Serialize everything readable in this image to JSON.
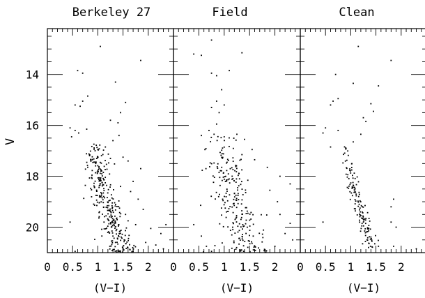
{
  "chart_data": [
    {
      "type": "scatter",
      "title": "Berkeley 27",
      "xlabel": "(V−I)",
      "ylabel": "V",
      "xlim": [
        0,
        2.5
      ],
      "ylim": [
        21,
        12.2
      ],
      "y_inverted": true,
      "xticks": [
        "0",
        "0.5",
        "1",
        "1.5",
        "2"
      ],
      "yticks": [
        "14",
        "16",
        "18",
        "20"
      ],
      "grid": false,
      "points": [
        [
          1.05,
          12.9
        ],
        [
          0.6,
          13.85
        ],
        [
          0.7,
          13.95
        ],
        [
          1.85,
          13.45
        ],
        [
          1.35,
          14.3
        ],
        [
          0.8,
          14.85
        ],
        [
          0.7,
          15.05
        ],
        [
          0.55,
          15.2
        ],
        [
          0.65,
          15.25
        ],
        [
          1.55,
          15.1
        ],
        [
          1.45,
          15.5
        ],
        [
          1.25,
          15.8
        ],
        [
          1.4,
          15.9
        ],
        [
          0.45,
          16.1
        ],
        [
          0.55,
          16.2
        ],
        [
          0.62,
          16.3
        ],
        [
          0.48,
          16.45
        ],
        [
          0.78,
          16.15
        ],
        [
          1.42,
          16.4
        ],
        [
          1.3,
          16.6
        ],
        [
          1.0,
          16.95
        ],
        [
          1.15,
          16.85
        ],
        [
          0.95,
          17.45
        ],
        [
          1.25,
          17.3
        ],
        [
          1.5,
          17.25
        ],
        [
          1.6,
          17.4
        ],
        [
          1.85,
          17.7
        ],
        [
          1.7,
          18.2
        ],
        [
          1.45,
          18.4
        ],
        [
          1.65,
          18.6
        ],
        [
          1.8,
          18.9
        ],
        [
          1.9,
          19.3
        ],
        [
          1.55,
          19.5
        ],
        [
          1.6,
          19.75
        ],
        [
          1.75,
          19.9
        ],
        [
          2.05,
          20.05
        ],
        [
          2.25,
          20.25
        ],
        [
          2.35,
          19.9
        ],
        [
          1.95,
          20.6
        ],
        [
          2.15,
          20.7
        ],
        [
          2.3,
          20.85
        ],
        [
          0.45,
          19.8
        ],
        [
          0.55,
          20.95
        ],
        [
          1.3,
          20.35
        ],
        [
          1.35,
          20.6
        ],
        [
          1.5,
          20.9
        ],
        [
          1.7,
          20.95
        ]
      ],
      "main_sequence": {
        "ridge": [
          [
            0.95,
            16.7
          ],
          [
            1.0,
            17.5
          ],
          [
            1.05,
            18.3
          ],
          [
            1.1,
            18.8
          ],
          [
            1.2,
            19.2
          ],
          [
            1.3,
            19.8
          ],
          [
            1.4,
            20.4
          ],
          [
            1.55,
            21.0
          ]
        ],
        "count": 310,
        "spread": 0.09
      }
    },
    {
      "type": "scatter",
      "title": "Field",
      "xlabel": "(V−I)",
      "ylabel": "",
      "xlim": [
        0,
        2.5
      ],
      "ylim": [
        21,
        12.2
      ],
      "y_inverted": true,
      "xticks": [
        "0",
        "0.5",
        "1",
        "1.5",
        "2"
      ],
      "grid": false,
      "points": [
        [
          0.75,
          12.65
        ],
        [
          1.35,
          13.15
        ],
        [
          0.4,
          13.2
        ],
        [
          0.55,
          13.25
        ],
        [
          0.75,
          13.95
        ],
        [
          0.85,
          14.05
        ],
        [
          1.1,
          13.85
        ],
        [
          0.95,
          14.6
        ],
        [
          0.85,
          15.05
        ],
        [
          1.0,
          15.2
        ],
        [
          0.75,
          15.3
        ],
        [
          0.9,
          15.5
        ],
        [
          0.85,
          15.95
        ],
        [
          0.7,
          16.2
        ],
        [
          0.8,
          16.35
        ],
        [
          1.0,
          16.45
        ],
        [
          0.55,
          16.4
        ],
        [
          1.25,
          16.35
        ],
        [
          1.4,
          16.55
        ],
        [
          1.55,
          16.95
        ],
        [
          1.35,
          17.15
        ],
        [
          1.6,
          17.35
        ],
        [
          1.85,
          17.65
        ],
        [
          2.1,
          18.0
        ],
        [
          2.3,
          18.3
        ],
        [
          1.9,
          18.55
        ],
        [
          2.05,
          19.0
        ],
        [
          2.1,
          19.5
        ],
        [
          2.3,
          19.85
        ],
        [
          2.2,
          20.25
        ],
        [
          2.35,
          20.5
        ],
        [
          2.0,
          20.75
        ],
        [
          0.55,
          20.35
        ],
        [
          0.65,
          20.75
        ],
        [
          0.75,
          20.95
        ],
        [
          1.7,
          21.0
        ],
        [
          2.25,
          21.0
        ],
        [
          0.4,
          19.9
        ]
      ],
      "main_sequence": {
        "ridge": [
          [
            0.95,
            16.4
          ],
          [
            1.0,
            17.3
          ],
          [
            1.1,
            18.0
          ],
          [
            1.2,
            18.8
          ],
          [
            1.3,
            19.5
          ],
          [
            1.4,
            20.2
          ],
          [
            1.5,
            21.0
          ]
        ],
        "count": 240,
        "spread": 0.16
      }
    },
    {
      "type": "scatter",
      "title": "Clean",
      "xlabel": "(V−I)",
      "ylabel": "",
      "xlim": [
        0,
        2.5
      ],
      "ylim": [
        21,
        12.2
      ],
      "y_inverted": true,
      "xticks": [
        "0",
        "0.5",
        "1",
        "1.5",
        "2"
      ],
      "grid": false,
      "points": [
        [
          1.15,
          12.9
        ],
        [
          0.7,
          14.0
        ],
        [
          1.05,
          14.35
        ],
        [
          1.55,
          14.45
        ],
        [
          1.8,
          13.45
        ],
        [
          0.75,
          14.95
        ],
        [
          0.65,
          15.05
        ],
        [
          0.6,
          15.2
        ],
        [
          1.4,
          15.15
        ],
        [
          1.45,
          15.45
        ],
        [
          1.25,
          15.7
        ],
        [
          1.3,
          15.85
        ],
        [
          0.5,
          16.1
        ],
        [
          0.45,
          16.3
        ],
        [
          0.75,
          16.2
        ],
        [
          1.2,
          16.35
        ],
        [
          1.05,
          16.65
        ],
        [
          0.6,
          16.85
        ],
        [
          1.85,
          18.9
        ],
        [
          1.8,
          19.2
        ],
        [
          1.8,
          19.8
        ],
        [
          1.9,
          20.0
        ],
        [
          0.45,
          19.8
        ],
        [
          1.55,
          20.75
        ],
        [
          1.85,
          20.75
        ],
        [
          2.3,
          20.85
        ]
      ],
      "main_sequence": {
        "ridge": [
          [
            0.9,
            16.8
          ],
          [
            0.95,
            17.5
          ],
          [
            1.05,
            18.3
          ],
          [
            1.1,
            18.9
          ],
          [
            1.15,
            19.2
          ],
          [
            1.25,
            19.8
          ],
          [
            1.35,
            20.3
          ],
          [
            1.45,
            20.8
          ]
        ],
        "count": 140,
        "spread": 0.05
      }
    }
  ]
}
